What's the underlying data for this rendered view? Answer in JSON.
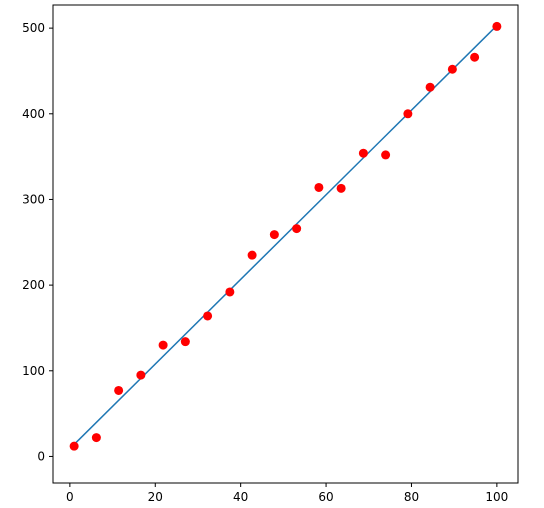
{
  "chart_data": {
    "type": "scatter",
    "xlim": [
      -3.95,
      104.95
    ],
    "ylim": [
      -31,
      527
    ],
    "xticks": [
      0,
      20,
      40,
      60,
      80,
      100
    ],
    "yticks": [
      0,
      100,
      200,
      300,
      400,
      500
    ],
    "series": [
      {
        "type": "line",
        "color": "#1f77b4",
        "x": [
          1,
          100
        ],
        "values": [
          14,
          503
        ]
      },
      {
        "type": "scatter",
        "color": "#ff0000",
        "x": [
          1,
          6.21,
          11.42,
          16.63,
          21.84,
          27.05,
          32.26,
          37.47,
          42.68,
          47.89,
          53.11,
          58.32,
          63.53,
          68.74,
          73.95,
          79.16,
          84.37,
          89.58,
          94.79,
          100
        ],
        "values": [
          12,
          22,
          77,
          95,
          130,
          134,
          164,
          192,
          235,
          259,
          266,
          314,
          313,
          354,
          352,
          400,
          431,
          452,
          466,
          502
        ]
      }
    ]
  }
}
